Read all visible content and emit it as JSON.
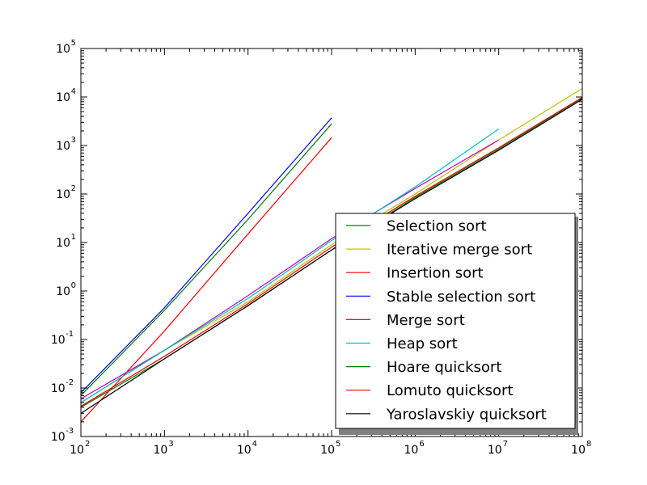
{
  "chart_data": {
    "type": "line",
    "xscale": "log",
    "yscale": "log",
    "xlim": [
      100,
      100000000
    ],
    "ylim": [
      0.001,
      100000
    ],
    "x_ticks": [
      {
        "base": "10",
        "exp": "2",
        "value": 100
      },
      {
        "base": "10",
        "exp": "3",
        "value": 1000
      },
      {
        "base": "10",
        "exp": "4",
        "value": 10000
      },
      {
        "base": "10",
        "exp": "5",
        "value": 100000
      },
      {
        "base": "10",
        "exp": "6",
        "value": 1000000
      },
      {
        "base": "10",
        "exp": "7",
        "value": 10000000
      },
      {
        "base": "10",
        "exp": "8",
        "value": 100000000
      }
    ],
    "y_ticks": [
      {
        "base": "10",
        "exp": "-3",
        "value": 0.001
      },
      {
        "base": "10",
        "exp": "-2",
        "value": 0.01
      },
      {
        "base": "10",
        "exp": "-1",
        "value": 0.1
      },
      {
        "base": "10",
        "exp": "0",
        "value": 1
      },
      {
        "base": "10",
        "exp": "1",
        "value": 10
      },
      {
        "base": "10",
        "exp": "2",
        "value": 100
      },
      {
        "base": "10",
        "exp": "3",
        "value": 1000
      },
      {
        "base": "10",
        "exp": "4",
        "value": 10000
      },
      {
        "base": "10",
        "exp": "5",
        "value": 100000
      }
    ],
    "grid": false,
    "legend_position": "lower-right",
    "series": [
      {
        "name": "Selection sort",
        "color": "#008000",
        "x": [
          100,
          1000,
          10000,
          100000
        ],
        "y": [
          0.007,
          0.4,
          30,
          2800
        ]
      },
      {
        "name": "Iterative merge sort",
        "color": "#bfbf00",
        "x": [
          100,
          1000,
          10000,
          100000,
          1000000,
          10000000,
          100000000
        ],
        "y": [
          0.005,
          0.06,
          0.6,
          9,
          100,
          1300,
          15000
        ]
      },
      {
        "name": "Insertion sort",
        "color": "#ff0000",
        "x": [
          100,
          1000,
          10000,
          100000
        ],
        "y": [
          0.002,
          0.15,
          15,
          1450
        ]
      },
      {
        "name": "Stable selection sort",
        "color": "#0000ff",
        "x": [
          100,
          1000,
          10000,
          100000
        ],
        "y": [
          0.008,
          0.45,
          40,
          3700
        ]
      },
      {
        "name": "Merge sort",
        "color": "#bf00bf",
        "x": [
          100,
          1000,
          10000,
          100000,
          1000000,
          10000000
        ],
        "y": [
          0.006,
          0.06,
          0.8,
          12,
          130,
          1300
        ]
      },
      {
        "name": "Heap sort",
        "color": "#00bfbf",
        "x": [
          100,
          1000,
          10000,
          100000,
          1000000,
          10000000
        ],
        "y": [
          0.005,
          0.06,
          0.7,
          11,
          140,
          2200
        ]
      },
      {
        "name": "Hoare quicksort",
        "color": "#008000",
        "x": [
          100,
          1000,
          10000,
          100000,
          1000000,
          10000000,
          100000000
        ],
        "y": [
          0.004,
          0.04,
          0.5,
          7,
          85,
          850,
          9500
        ]
      },
      {
        "name": "Lomuto quicksort",
        "color": "#ff0000",
        "x": [
          100,
          1000,
          10000,
          100000,
          1000000,
          10000000,
          100000000
        ],
        "y": [
          0.0042,
          0.045,
          0.55,
          8,
          90,
          900,
          9800
        ]
      },
      {
        "name": "Yaroslavskiy quicksort",
        "color": "#000000",
        "x": [
          100,
          1000,
          10000,
          100000,
          1000000,
          10000000,
          100000000
        ],
        "y": [
          0.003,
          0.04,
          0.5,
          7,
          80,
          800,
          9000
        ]
      }
    ]
  }
}
